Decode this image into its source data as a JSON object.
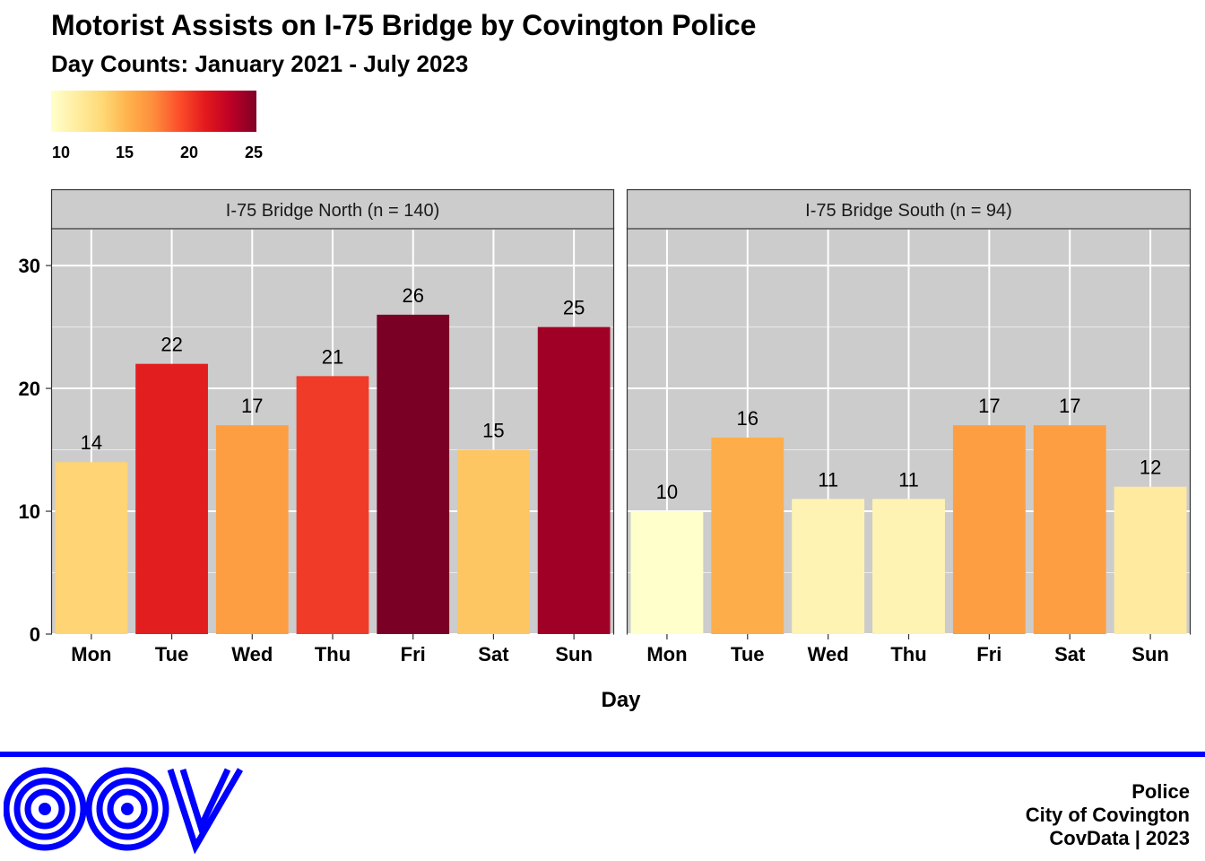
{
  "colors": {
    "panel_bg": "#cccccc",
    "strip_bg": "#cccccc",
    "grid": "#ffffff",
    "footer_line": "#0000ff",
    "logo": "#0000ff",
    "scale": [
      "#ffffcc",
      "#ffeda0",
      "#fed976",
      "#feb24c",
      "#fd8d3c",
      "#fc4e2a",
      "#e31a1c",
      "#bd0026",
      "#800026"
    ]
  },
  "legend": {
    "min": 10,
    "max": 25,
    "ticks": [
      "10",
      "15",
      "20",
      "25"
    ]
  },
  "chart_data": {
    "type": "bar",
    "title": "Motorist Assists on I-75 Bridge by Covington Police",
    "subtitle": "Day Counts: January 2021 - July 2023",
    "xlabel": "Day",
    "ylabel": "",
    "ylim": [
      0,
      33
    ],
    "yticks": [
      0,
      10,
      20,
      30
    ],
    "grid": true,
    "legend_position": "top-left",
    "categories": [
      "Mon",
      "Tue",
      "Wed",
      "Thu",
      "Fri",
      "Sat",
      "Sun"
    ],
    "panels": [
      {
        "name": "I-75 Bridge North (n = 140)",
        "values": [
          14,
          22,
          17,
          21,
          26,
          15,
          25
        ],
        "colors": [
          "#fed475",
          "#e31e1e",
          "#fd9e43",
          "#f03b28",
          "#7b0025",
          "#fec662",
          "#a10026"
        ]
      },
      {
        "name": "I-75 Bridge South (n = 94)",
        "values": [
          10,
          16,
          11,
          11,
          17,
          17,
          12
        ],
        "colors": [
          "#ffffcc",
          "#fdae4b",
          "#fff3b3",
          "#fff3b3",
          "#fd9e43",
          "#fd9e43",
          "#ffeaa0"
        ]
      }
    ]
  },
  "footer": {
    "dept": "Police",
    "city": "City of Covington",
    "credit": "CovData | 2023",
    "logo_name": "COV"
  }
}
